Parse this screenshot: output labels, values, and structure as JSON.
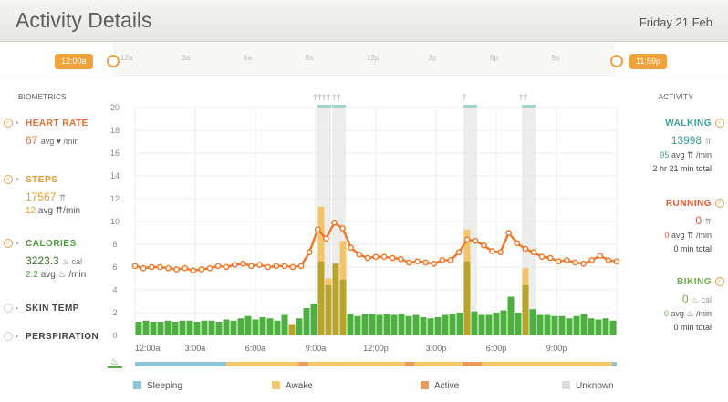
{
  "header": {
    "title": "Activity Details",
    "date": "Friday 21 Feb"
  },
  "timeline": {
    "start_label": "12:00a",
    "end_label": "11:59p",
    "ticks": [
      "12a",
      "3a",
      "6a",
      "9a",
      "12p",
      "3p",
      "6p",
      "9p"
    ]
  },
  "biometrics": {
    "heading": "BIOMETRICS",
    "heart_rate": {
      "label": "HEART RATE",
      "value": "67",
      "unit": "avg ♥ /min",
      "color": "#e86c2c"
    },
    "steps": {
      "label": "STEPS",
      "value": "17567",
      "value_unit": "⇈",
      "avg": "12",
      "avg_unit": "avg ⇈/min",
      "color": "#e69a2a"
    },
    "calories": {
      "label": "CALORIES",
      "value": "3223.3",
      "value_unit": "♨ cal",
      "avg": "2.2",
      "avg_unit": "avg ♨ /min",
      "color": "#4a9e3a"
    },
    "skin_temp": {
      "label": "SKIN TEMP"
    },
    "perspiration": {
      "label": "PERSPIRATION"
    }
  },
  "activity": {
    "heading": "ACTIVITY",
    "walking": {
      "label": "WALKING",
      "value": "13998",
      "value_unit": "⇈",
      "avg": "95",
      "avg_unit": "avg ⇈ /min",
      "total": "2 hr 21 min total",
      "color": "#3aa39a"
    },
    "running": {
      "label": "RUNNING",
      "value": "0",
      "value_unit": "⇈",
      "avg": "0",
      "avg_unit": "avg ⇈ /min",
      "total": "0 min total",
      "color": "#e8542c"
    },
    "biking": {
      "label": "BIKING",
      "value": "0",
      "value_unit": "♨ cal",
      "avg": "0",
      "avg_unit": "avg ♨ /min",
      "total": "0 min total",
      "color": "#6ab04a"
    }
  },
  "legend": [
    {
      "label": "Sleeping",
      "color": "#8fc4d8"
    },
    {
      "label": "Awake",
      "color": "#f3c86a"
    },
    {
      "label": "Active",
      "color": "#ea9a5a"
    },
    {
      "label": "Unknown",
      "color": "#dddddd"
    }
  ],
  "chart_data": {
    "type": "bar",
    "yticks": [
      "0",
      "2",
      "4",
      "6",
      "8",
      "10",
      "12",
      "14",
      "16",
      "18",
      "20"
    ],
    "ylim": [
      0,
      20
    ],
    "x_tick_labels": [
      "12:00a",
      "3:00a",
      "6:00a",
      "9:00a",
      "12:00p",
      "3:00p",
      "6:00p",
      "9:00p"
    ],
    "calories_bars": [
      1.2,
      1.3,
      1.2,
      1.2,
      1.3,
      1.2,
      1.3,
      1.3,
      1.2,
      1.3,
      1.3,
      1.2,
      1.4,
      1.3,
      1.5,
      1.7,
      1.4,
      1.6,
      1.5,
      1.3,
      1.8,
      2.2,
      1.5,
      2.4,
      2.8,
      6.5,
      4.4,
      6.3,
      4.9,
      1.9,
      1.7,
      1.9,
      1.9,
      1.8,
      1.9,
      1.8,
      1.9,
      1.7,
      1.8,
      1.6,
      1.5,
      1.6,
      1.8,
      1.9,
      2.0,
      6.5,
      2.1,
      1.8,
      1.8,
      2.0,
      2.2,
      3.4,
      2.0,
      4.4,
      2.3,
      1.8,
      1.8,
      1.7,
      1.7,
      1.5,
      1.7,
      1.9,
      1.5,
      1.4,
      1.5,
      1.3
    ],
    "steps_bars": [
      0,
      0,
      0,
      0,
      0,
      0,
      0,
      0,
      0,
      0,
      0,
      0,
      0,
      0,
      0,
      0,
      0,
      0,
      0,
      0,
      0,
      1.0,
      0,
      0,
      0,
      11.3,
      5.0,
      6.3,
      8.3,
      0,
      0,
      0,
      0,
      0,
      0,
      0,
      0,
      0,
      0,
      0,
      0,
      0,
      0,
      0,
      0,
      9.3,
      0,
      0,
      0,
      0,
      0,
      0,
      0,
      5.9,
      0,
      0,
      0,
      0,
      0,
      0,
      0,
      0,
      0,
      0,
      0,
      0
    ],
    "heart_rate_line": [
      6.1,
      5.9,
      6.0,
      6.0,
      5.9,
      5.8,
      5.9,
      5.7,
      5.8,
      5.9,
      6.1,
      6.0,
      6.2,
      6.3,
      6.1,
      6.2,
      6.0,
      6.1,
      6.1,
      6.0,
      6.1,
      7.3,
      9.3,
      8.5,
      9.9,
      9.4,
      7.7,
      7.1,
      6.8,
      6.9,
      6.9,
      6.8,
      6.7,
      6.4,
      6.5,
      6.4,
      6.3,
      6.6,
      6.6,
      7.3,
      8.4,
      8.3,
      7.9,
      7.4,
      7.3,
      9.0,
      8.1,
      7.6,
      7.3,
      6.9,
      6.8,
      6.5,
      6.6,
      6.4,
      6.3,
      6.6,
      7.0,
      6.6,
      6.5
    ],
    "activity_markers": [
      "walking",
      "walking",
      "walking",
      "walking",
      "walking",
      "walking"
    ]
  }
}
